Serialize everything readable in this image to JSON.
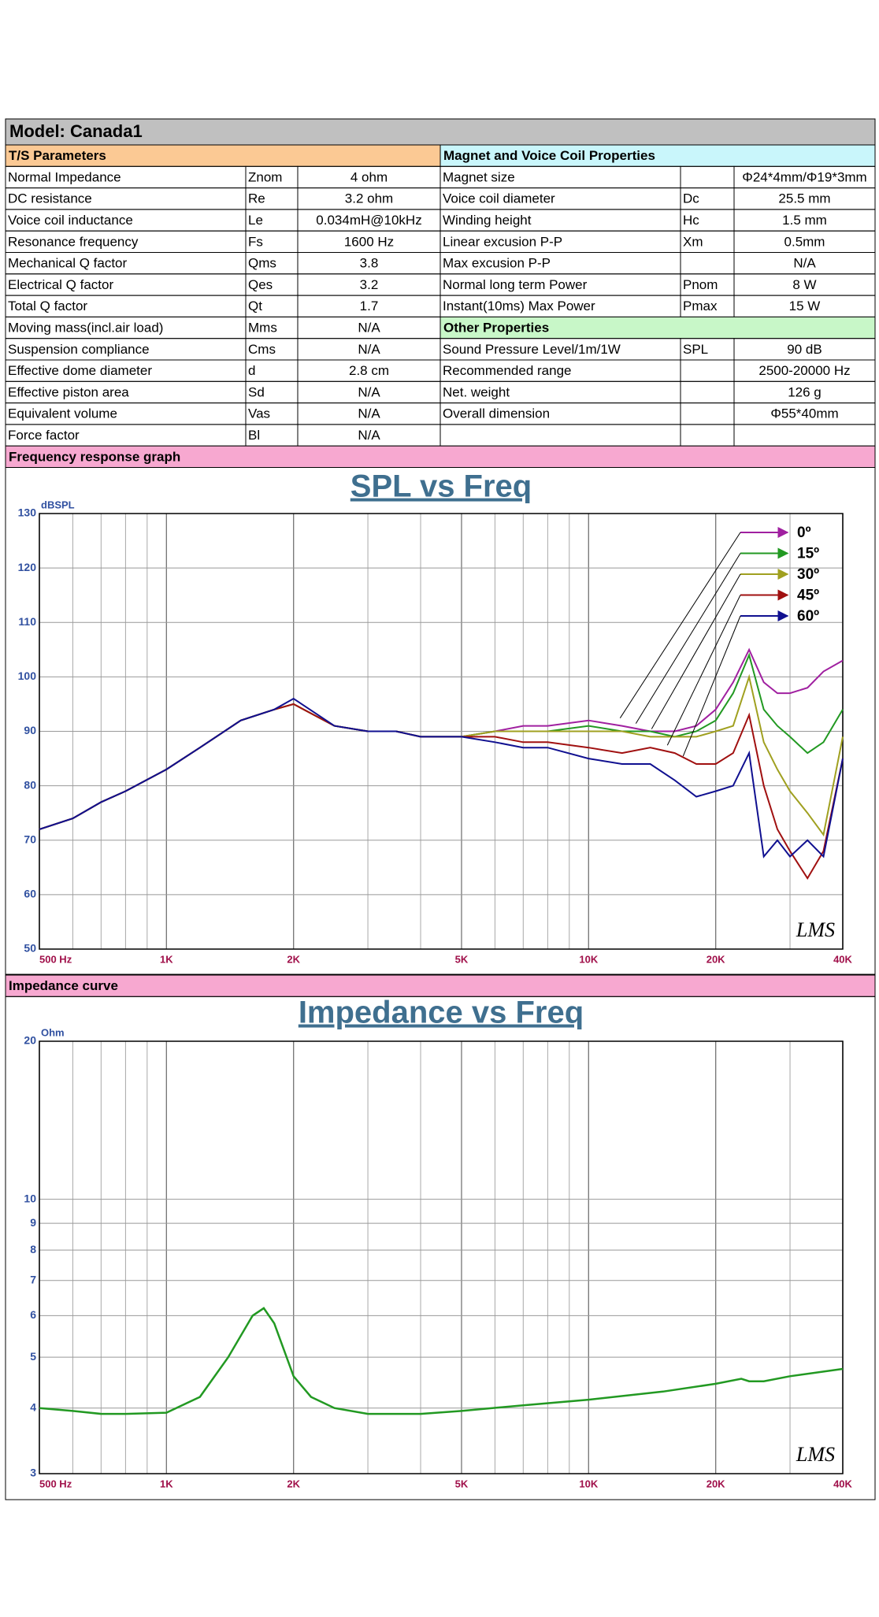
{
  "header": {
    "model": "Model: Canada1"
  },
  "table": {
    "ts_title": "T/S Parameters",
    "magnet_title": "Magnet and Voice Coil Properties",
    "other_title": "Other Properties",
    "ts_rows": [
      [
        "Normal Impedance",
        "Znom",
        "4 ohm"
      ],
      [
        "DC resistance",
        "Re",
        "3.2 ohm"
      ],
      [
        "Voice coil inductance",
        "Le",
        "0.034mH@10kHz"
      ],
      [
        "Resonance frequency",
        "Fs",
        "1600 Hz"
      ],
      [
        "Mechanical Q factor",
        "Qms",
        "3.8"
      ],
      [
        "Electrical Q factor",
        "Qes",
        "3.2"
      ],
      [
        "Total Q factor",
        "Qt",
        "1.7"
      ],
      [
        "Moving mass(incl.air load)",
        "Mms",
        "N/A"
      ],
      [
        "Suspension compliance",
        "Cms",
        "N/A"
      ],
      [
        "Effective dome diameter",
        "d",
        "2.8 cm"
      ],
      [
        "Effective piston area",
        "Sd",
        "N/A"
      ],
      [
        "Equivalent volume",
        "Vas",
        "N/A"
      ],
      [
        "Force factor",
        "Bl",
        "N/A"
      ]
    ],
    "magnet_rows": [
      [
        "Magnet size",
        null,
        "Φ24*4mm/Φ19*3mm"
      ],
      [
        "Voice coil diameter",
        "Dc",
        "25.5 mm"
      ],
      [
        "Winding height",
        "Hc",
        "1.5 mm"
      ],
      [
        "Linear excusion P-P",
        "Xm",
        "0.5mm"
      ],
      [
        "Max excusion P-P",
        null,
        "N/A"
      ],
      [
        "Normal long term Power",
        "Pnom",
        "8 W"
      ],
      [
        "Instant(10ms) Max Power",
        "Pmax",
        "15 W"
      ]
    ],
    "other_rows": [
      [
        "Sound Pressure Level/1m/1W",
        "SPL",
        "90 dB"
      ],
      [
        "Recommended range",
        null,
        "2500-20000 Hz"
      ],
      [
        "Net. weight",
        null,
        "126 g"
      ],
      [
        "Overall dimension",
        null,
        "Φ55*40mm"
      ]
    ]
  },
  "sections": {
    "frequency": "Frequency response graph",
    "impedance": "Impedance curve"
  },
  "chart_data": [
    {
      "type": "line",
      "title": "SPL vs Freq",
      "y_label": "dBSPL",
      "logo": "LMS",
      "log_x": true,
      "x": [
        500,
        600,
        700,
        800,
        1000,
        1200,
        1500,
        1800,
        2000,
        2500,
        3000,
        3500,
        4000,
        5000,
        6000,
        7000,
        8000,
        10000,
        12000,
        14000,
        16000,
        18000,
        20000,
        22000,
        24000,
        26000,
        28000,
        30000,
        33000,
        36000,
        40000
      ],
      "xlim": [
        500,
        40000
      ],
      "xticks": [
        {
          "value": 500,
          "label": "500 Hz"
        },
        {
          "value": 1000,
          "label": "1K"
        },
        {
          "value": 2000,
          "label": "2K"
        },
        {
          "value": 5000,
          "label": "5K"
        },
        {
          "value": 10000,
          "label": "10K"
        },
        {
          "value": 20000,
          "label": "20K"
        },
        {
          "value": 40000,
          "label": "40K"
        }
      ],
      "ylim": [
        50,
        130
      ],
      "yticks": [
        50,
        60,
        70,
        80,
        90,
        100,
        110,
        120,
        130
      ],
      "series": [
        {
          "name": "0º",
          "color": "#a020a0",
          "values": [
            72,
            74,
            77,
            79,
            83,
            87,
            92,
            94,
            95,
            91,
            90,
            90,
            89,
            89,
            90,
            91,
            91,
            92,
            91,
            90,
            90,
            91,
            94,
            99,
            105,
            99,
            97,
            97,
            98,
            101,
            103
          ]
        },
        {
          "name": "15º",
          "color": "#229922",
          "values": [
            72,
            74,
            77,
            79,
            83,
            87,
            92,
            94,
            95,
            91,
            90,
            90,
            89,
            89,
            90,
            90,
            90,
            91,
            90,
            90,
            89,
            90,
            92,
            97,
            104,
            94,
            91,
            89,
            86,
            88,
            94
          ]
        },
        {
          "name": "30º",
          "color": "#a0a020",
          "values": [
            72,
            74,
            77,
            79,
            83,
            87,
            92,
            94,
            95,
            91,
            90,
            90,
            89,
            89,
            90,
            90,
            90,
            90,
            90,
            89,
            89,
            89,
            90,
            91,
            100,
            88,
            83,
            79,
            75,
            71,
            89
          ]
        },
        {
          "name": "45º",
          "color": "#a01010",
          "values": [
            72,
            74,
            77,
            79,
            83,
            87,
            92,
            94,
            95,
            91,
            90,
            90,
            89,
            89,
            89,
            88,
            88,
            87,
            86,
            87,
            86,
            84,
            84,
            86,
            93,
            80,
            72,
            68,
            63,
            68,
            85
          ]
        },
        {
          "name": "60º",
          "color": "#101090",
          "values": [
            72,
            74,
            77,
            79,
            83,
            87,
            92,
            94,
            96,
            91,
            90,
            90,
            89,
            89,
            88,
            87,
            87,
            85,
            84,
            84,
            81,
            78,
            79,
            80,
            86,
            67,
            70,
            67,
            70,
            67,
            85
          ]
        }
      ]
    },
    {
      "type": "line",
      "title": "Impedance vs Freq",
      "y_label": "Ohm",
      "logo": "LMS",
      "log_x": true,
      "log_y": true,
      "x": [
        500,
        600,
        700,
        800,
        1000,
        1200,
        1400,
        1600,
        1700,
        1800,
        2000,
        2200,
        2500,
        3000,
        4000,
        5000,
        7000,
        10000,
        15000,
        20000,
        23000,
        24000,
        26000,
        30000,
        40000
      ],
      "xlim": [
        500,
        40000
      ],
      "xticks": [
        {
          "value": 500,
          "label": "500 Hz"
        },
        {
          "value": 1000,
          "label": "1K"
        },
        {
          "value": 2000,
          "label": "2K"
        },
        {
          "value": 5000,
          "label": "5K"
        },
        {
          "value": 10000,
          "label": "10K"
        },
        {
          "value": 20000,
          "label": "20K"
        },
        {
          "value": 40000,
          "label": "40K"
        }
      ],
      "ylim": [
        3,
        20
      ],
      "yticks": [
        3,
        4,
        5,
        6,
        7,
        8,
        9,
        10,
        20
      ],
      "color": "#229922",
      "values": [
        4.0,
        3.95,
        3.9,
        3.9,
        3.92,
        4.2,
        5.0,
        6.0,
        6.2,
        5.8,
        4.6,
        4.2,
        4.0,
        3.9,
        3.9,
        3.95,
        4.05,
        4.15,
        4.3,
        4.45,
        4.55,
        4.5,
        4.5,
        4.6,
        4.75
      ]
    }
  ]
}
